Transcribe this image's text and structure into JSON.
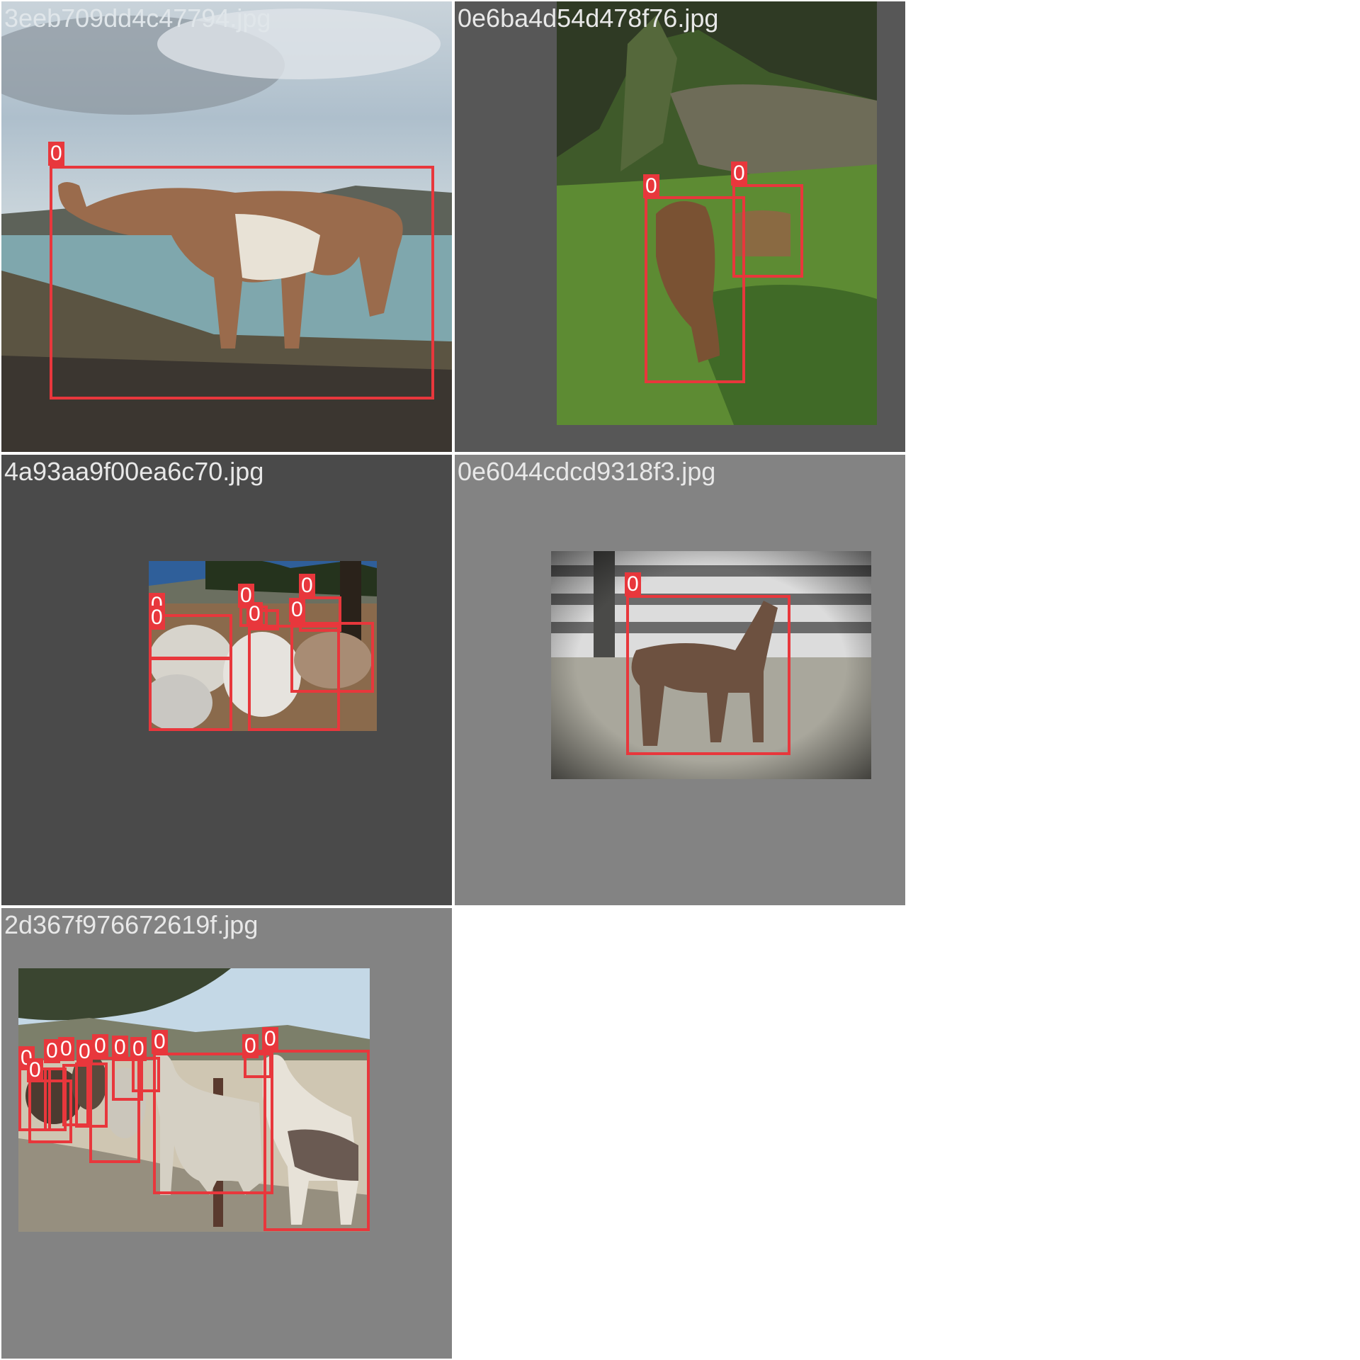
{
  "colors": {
    "box": "#e8373c",
    "filename_text": "#e8e8e8"
  },
  "tiles": [
    {
      "filename": "3eeb709dd4c47794.jpg",
      "background": "#8a8f94",
      "scene": "guanaco-lake",
      "detections": [
        {
          "label": "0"
        }
      ]
    },
    {
      "filename": "0e6ba4d54d478f76.jpg",
      "background": "#575757",
      "scene": "machu-picchu-llamas",
      "detections": [
        {
          "label": "0"
        },
        {
          "label": "0"
        }
      ]
    },
    {
      "filename": "4a93aa9f00ea6c70.jpg",
      "background": "#4a4a4a",
      "scene": "alpaca-herd",
      "detections": [
        {
          "label": "0"
        },
        {
          "label": "0"
        },
        {
          "label": "0"
        },
        {
          "label": "0"
        },
        {
          "label": "0"
        },
        {
          "label": "0"
        },
        {
          "label": "0"
        }
      ]
    },
    {
      "filename": "0e6044cdcd9318f3.jpg",
      "background": "#838383",
      "scene": "alpaca-fence",
      "detections": [
        {
          "label": "0"
        }
      ]
    },
    {
      "filename": "2d367f976672619f.jpg",
      "background": "#838383",
      "scene": "llamas-fence",
      "detections": [
        {
          "label": "0"
        },
        {
          "label": "0"
        },
        {
          "label": "0"
        },
        {
          "label": "0"
        },
        {
          "label": "0"
        },
        {
          "label": "0"
        },
        {
          "label": "0"
        },
        {
          "label": "0"
        },
        {
          "label": "0"
        },
        {
          "label": "0"
        },
        {
          "label": "0"
        }
      ]
    }
  ]
}
